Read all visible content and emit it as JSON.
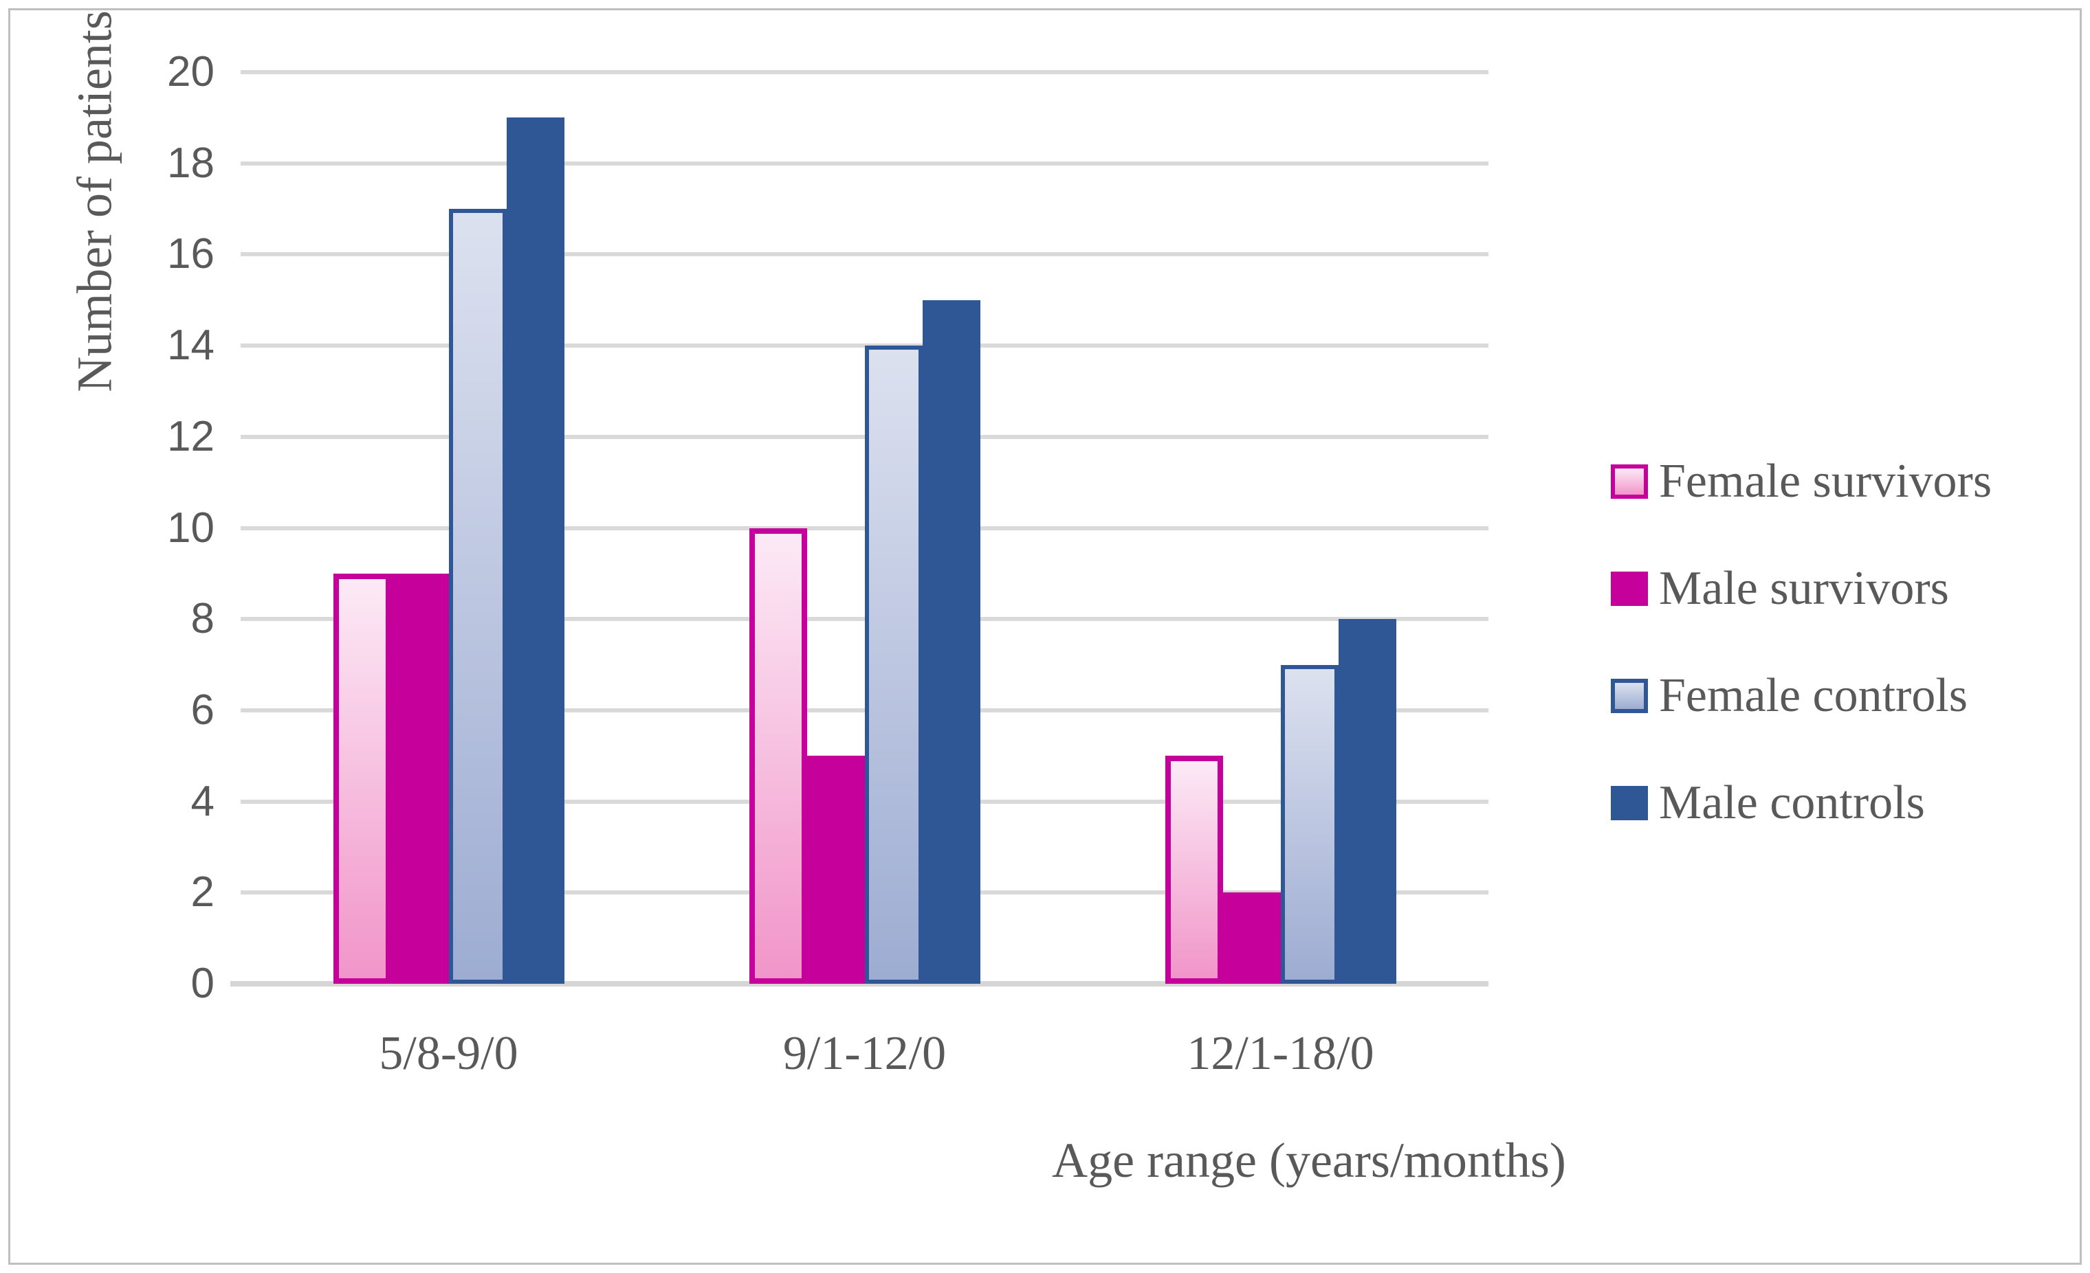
{
  "figure": {
    "background": "#FFFFFF",
    "border_color": "#BFBFBF",
    "text_color": "#595959"
  },
  "chart_data": {
    "type": "bar",
    "title": "",
    "xlabel": "Age range (years/months)",
    "ylabel": "Number of patients",
    "categories": [
      "5/8-9/0",
      "9/1-12/0",
      "12/1-18/0"
    ],
    "series": [
      {
        "name": "Female survivors",
        "values": [
          9,
          10,
          5
        ],
        "fill_top": "#FCEAF6",
        "fill_bottom": "#F195C9",
        "border": "#C6009B",
        "border_px": 8
      },
      {
        "name": "Male survivors",
        "values": [
          9,
          5,
          2
        ],
        "fill": "#C6009B"
      },
      {
        "name": "Female controls",
        "values": [
          17,
          14,
          7
        ],
        "fill_top": "#DCE1EF",
        "fill_bottom": "#9DACD2",
        "border": "#2F5695",
        "border_px": 6
      },
      {
        "name": "Male controls",
        "values": [
          19,
          15,
          8
        ],
        "fill": "#2F5695"
      }
    ],
    "ylim": [
      0,
      20
    ],
    "ytick_step": 2,
    "ytick_labels": [
      "0",
      "2",
      "4",
      "6",
      "8",
      "10",
      "12",
      "14",
      "16",
      "18",
      "20"
    ],
    "grid": "horizontal",
    "gridline_color": "#D9D9D9",
    "axis_line_color": "#D6D6D6",
    "legend_position": "right"
  }
}
